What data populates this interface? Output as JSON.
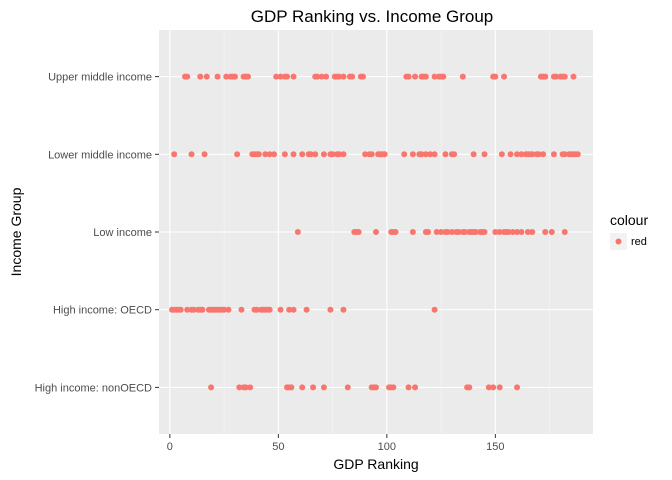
{
  "chart_data": {
    "type": "scatter",
    "title": "GDP Ranking vs. Income Group",
    "xlabel": "GDP Ranking",
    "ylabel": "Income Group",
    "xlim": [
      -5,
      195
    ],
    "x_ticks": [
      0,
      50,
      100,
      150
    ],
    "x_tick_labels": [
      "0",
      "50",
      "100",
      "150"
    ],
    "categories": [
      "High income: nonOECD",
      "High income: OECD",
      "Low income",
      "Lower middle income",
      "Upper middle income"
    ],
    "grid": true,
    "legend": {
      "title": "colour",
      "placement": "right",
      "entries": [
        {
          "label": "red",
          "color": "#F8766D"
        }
      ]
    },
    "point_color": "#F8766D",
    "series": [
      {
        "category": "Upper middle income",
        "x": [
          7,
          8,
          14,
          17,
          22,
          26,
          28,
          29,
          30,
          34,
          35,
          36,
          49,
          51,
          53,
          54,
          57,
          67,
          68,
          70,
          72,
          76,
          77,
          78,
          80,
          83,
          84,
          88,
          89,
          109,
          110,
          113,
          116,
          117,
          118,
          122,
          124,
          125,
          126,
          135,
          149,
          150,
          154,
          171,
          172,
          173,
          177,
          178,
          180,
          181,
          182,
          186
        ]
      },
      {
        "category": "Lower middle income",
        "x": [
          2,
          10,
          16,
          31,
          38,
          39,
          40,
          41,
          44,
          46,
          48,
          53,
          57,
          61,
          64,
          65,
          67,
          71,
          74,
          75,
          77,
          78,
          80,
          90,
          92,
          93,
          96,
          97,
          98,
          99,
          108,
          112,
          115,
          116,
          118,
          120,
          122,
          127,
          130,
          131,
          140,
          145,
          153,
          157,
          160,
          162,
          164,
          165,
          166,
          167,
          169,
          170,
          172,
          177,
          181,
          182,
          184,
          185,
          186,
          187,
          188
        ]
      },
      {
        "category": "Low income",
        "x": [
          59,
          85,
          86,
          87,
          95,
          102,
          103,
          104,
          112,
          118,
          119,
          123,
          125,
          127,
          128,
          130,
          132,
          133,
          135,
          136,
          138,
          139,
          140,
          141,
          143,
          144,
          145,
          150,
          152,
          154,
          155,
          156,
          158,
          160,
          162,
          165,
          167,
          173,
          176,
          182
        ]
      },
      {
        "category": "High income: OECD",
        "x": [
          1,
          2,
          3,
          4,
          5,
          8,
          10,
          11,
          13,
          14,
          15,
          18,
          19,
          20,
          21,
          22,
          23,
          24,
          25,
          27,
          33,
          39,
          40,
          42,
          43,
          44,
          45,
          46,
          51,
          55,
          57,
          63,
          74,
          80,
          122
        ]
      },
      {
        "category": "High income: nonOECD",
        "x": [
          19,
          32,
          34,
          35,
          37,
          54,
          55,
          56,
          61,
          66,
          71,
          82,
          93,
          94,
          95,
          101,
          102,
          103,
          110,
          113,
          137,
          138,
          147,
          149,
          152,
          160
        ]
      }
    ]
  }
}
